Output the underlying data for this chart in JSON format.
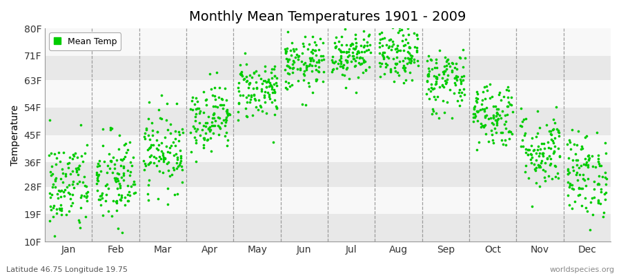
{
  "title": "Monthly Mean Temperatures 1901 - 2009",
  "ylabel": "Temperature",
  "xlabel": "",
  "subtitle_left": "Latitude 46.75 Longitude 19.75",
  "subtitle_right": "worldspecies.org",
  "legend_label": "Mean Temp",
  "dot_color": "#00CC00",
  "background_color": "#FFFFFF",
  "plot_bg_color": "#FFFFFF",
  "band_colors": [
    "#E8E8E8",
    "#F8F8F8"
  ],
  "yticks": [
    10,
    19,
    28,
    36,
    45,
    54,
    63,
    71,
    80
  ],
  "ytick_labels": [
    "10F",
    "19F",
    "28F",
    "36F",
    "45F",
    "54F",
    "63F",
    "71F",
    "80F"
  ],
  "ylim": [
    10,
    80
  ],
  "months": [
    "Jan",
    "Feb",
    "Mar",
    "Apr",
    "May",
    "Jun",
    "Jul",
    "Aug",
    "Sep",
    "Oct",
    "Nov",
    "Dec"
  ],
  "month_means_F": [
    28.0,
    30.0,
    40.0,
    51.0,
    60.0,
    68.0,
    72.0,
    71.0,
    63.0,
    52.0,
    40.0,
    32.0
  ],
  "month_stds_F": [
    8.0,
    8.0,
    6.5,
    5.5,
    5.0,
    4.5,
    4.5,
    4.5,
    5.5,
    5.5,
    6.5,
    7.0
  ],
  "n_years": 109,
  "seed": 42
}
